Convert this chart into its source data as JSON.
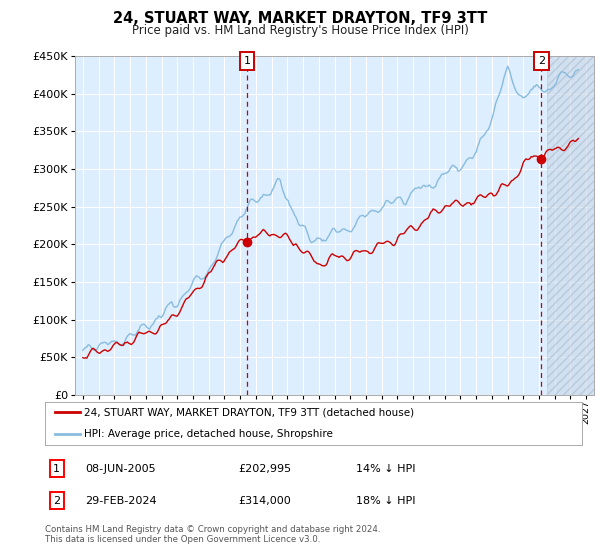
{
  "title": "24, STUART WAY, MARKET DRAYTON, TF9 3TT",
  "subtitle": "Price paid vs. HM Land Registry's House Price Index (HPI)",
  "red_label": "24, STUART WAY, MARKET DRAYTON, TF9 3TT (detached house)",
  "blue_label": "HPI: Average price, detached house, Shropshire",
  "point1_label": "1",
  "point2_label": "2",
  "point1_date": "08-JUN-2005",
  "point1_price": "£202,995",
  "point1_hpi": "14% ↓ HPI",
  "point2_date": "29-FEB-2024",
  "point2_price": "£314,000",
  "point2_hpi": "18% ↓ HPI",
  "footer": "Contains HM Land Registry data © Crown copyright and database right 2024.\nThis data is licensed under the Open Government Licence v3.0.",
  "ylim": [
    0,
    450000
  ],
  "xmin": 1994.5,
  "xmax": 2027.5,
  "red_color": "#cc0000",
  "blue_color": "#88bbdd",
  "point1_x": 2005.44,
  "point1_y": 202995,
  "point2_x": 2024.16,
  "point2_y": 314000,
  "plot_bg": "#ddeeff",
  "future_start": 2024.5
}
